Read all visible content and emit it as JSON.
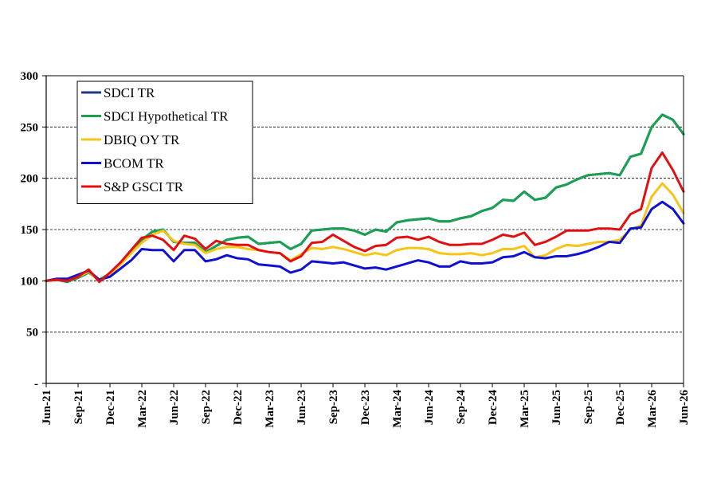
{
  "chart_data": {
    "type": "line",
    "ylim": [
      0,
      300
    ],
    "yticks": [
      0,
      50,
      100,
      150,
      200,
      250,
      300
    ],
    "ytick_labels": [
      "-",
      "50",
      "100",
      "150",
      "200",
      "250",
      "300"
    ],
    "x_count": 61,
    "xtick_positions": [
      0,
      3,
      6,
      9,
      12,
      15,
      18,
      21,
      24,
      27,
      30,
      33,
      36,
      39,
      42,
      45,
      48,
      51,
      54,
      57,
      60
    ],
    "xtick_labels": [
      "Jun-21",
      "Sep-21",
      "Dec-21",
      "Mar-22",
      "Jun-22",
      "Sep-22",
      "Dec-22",
      "Mar-23",
      "Jun-23",
      "Sep-23",
      "Dec-23",
      "Mar-24",
      "Jun-24",
      "Sep-24",
      "Dec-24",
      "Mar-25",
      "Jun-25",
      "Sep-25",
      "Dec-25",
      "Mar-26",
      "Jun-26"
    ],
    "grid": "horizontal-dashed",
    "legend_position": "top-left",
    "series": [
      {
        "name": "SDCI TR",
        "color": "#1f3a7a",
        "values": [
          100,
          101,
          99,
          103,
          108,
          101,
          107,
          117,
          129,
          140,
          148,
          150,
          138,
          137,
          137,
          128,
          134,
          140,
          142,
          143,
          136,
          137,
          138,
          131,
          136,
          149,
          150,
          151,
          151,
          149,
          145,
          150,
          148,
          157,
          159,
          160,
          161,
          158,
          158,
          161,
          163,
          168,
          171,
          179,
          178,
          187,
          179,
          181,
          191,
          194,
          199,
          203,
          204,
          205,
          203,
          221,
          224,
          250,
          262,
          257,
          243
        ]
      },
      {
        "name": "SDCI Hypothetical TR",
        "color": "#1aa152",
        "values": [
          100,
          101,
          99,
          103,
          108,
          101,
          107,
          117,
          129,
          140,
          148,
          150,
          138,
          137,
          137,
          128,
          134,
          140,
          142,
          143,
          136,
          137,
          138,
          131,
          136,
          149,
          150,
          151,
          151,
          149,
          145,
          150,
          148,
          157,
          159,
          160,
          161,
          158,
          158,
          161,
          163,
          168,
          171,
          179,
          178,
          187,
          179,
          181,
          191,
          194,
          199,
          203,
          204,
          205,
          203,
          221,
          224,
          250,
          262,
          257,
          243
        ]
      },
      {
        "name": "DBIQ OY TR",
        "color": "#f5c518",
        "values": [
          100,
          102,
          100,
          104,
          109,
          100,
          106,
          116,
          127,
          137,
          145,
          149,
          139,
          136,
          135,
          127,
          131,
          133,
          133,
          131,
          130,
          128,
          127,
          120,
          126,
          132,
          131,
          133,
          131,
          128,
          125,
          127,
          125,
          130,
          132,
          132,
          131,
          127,
          126,
          126,
          127,
          125,
          127,
          131,
          131,
          134,
          123,
          125,
          131,
          135,
          134,
          136,
          138,
          138,
          140,
          150,
          154,
          182,
          195,
          184,
          166
        ]
      },
      {
        "name": "BCOM TR",
        "color": "#1010d0",
        "values": [
          100,
          102,
          102,
          106,
          110,
          101,
          104,
          112,
          120,
          131,
          130,
          130,
          119,
          130,
          130,
          119,
          121,
          125,
          122,
          121,
          116,
          115,
          114,
          108,
          111,
          119,
          118,
          117,
          118,
          115,
          112,
          113,
          111,
          114,
          117,
          120,
          118,
          114,
          114,
          119,
          117,
          117,
          118,
          123,
          124,
          128,
          123,
          122,
          124,
          124,
          126,
          129,
          133,
          138,
          137,
          151,
          152,
          170,
          177,
          170,
          156
        ]
      },
      {
        "name": "S&P GSCI TR",
        "color": "#e01010",
        "values": [
          100,
          101,
          100,
          104,
          111,
          99,
          108,
          118,
          130,
          142,
          144,
          140,
          130,
          144,
          141,
          131,
          139,
          136,
          135,
          135,
          130,
          128,
          127,
          119,
          124,
          137,
          138,
          145,
          139,
          133,
          129,
          134,
          135,
          142,
          143,
          140,
          143,
          138,
          135,
          135,
          136,
          136,
          140,
          145,
          143,
          147,
          135,
          138,
          143,
          149,
          149,
          149,
          151,
          151,
          150,
          165,
          170,
          210,
          225,
          208,
          187
        ]
      }
    ]
  }
}
